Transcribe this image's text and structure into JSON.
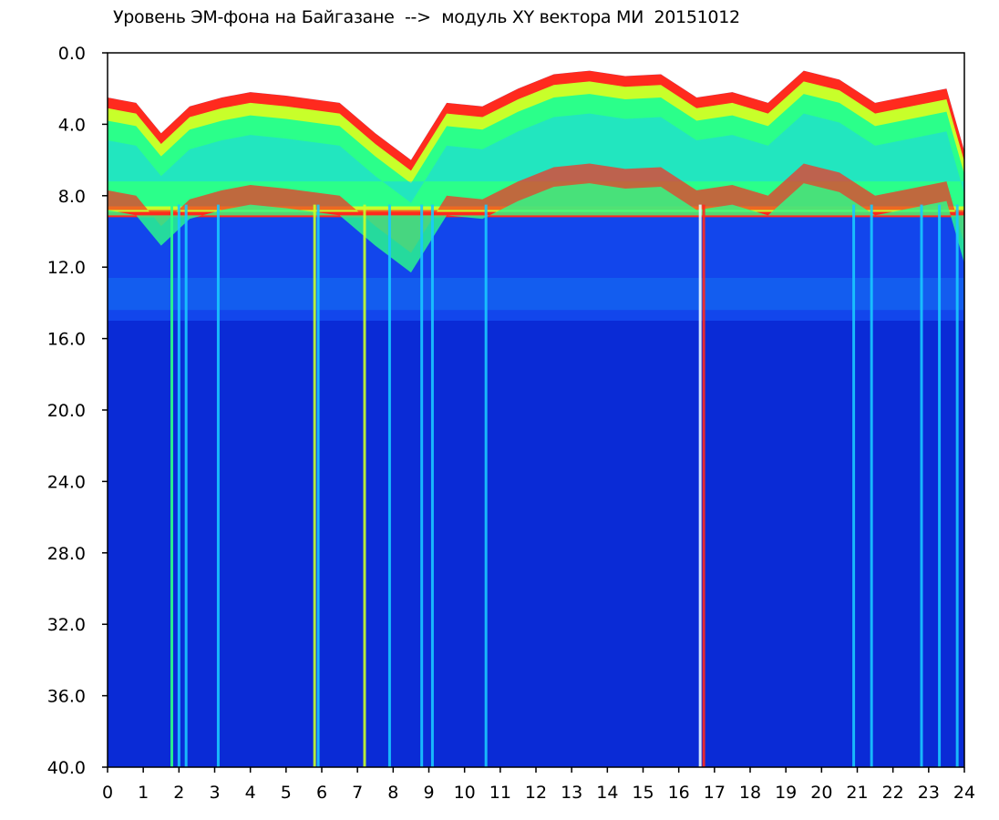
{
  "chart_data": {
    "type": "heatmap",
    "title": "Уровень ЭМ-фона на Байгазане  -->  модуль XY вектора МИ  20151012",
    "xlabel": "",
    "ylabel": "",
    "x_range": [
      0,
      24
    ],
    "y_range": [
      0,
      40
    ],
    "y_inverted": true,
    "x_ticks": [
      "0",
      "1",
      "2",
      "3",
      "4",
      "5",
      "6",
      "7",
      "8",
      "9",
      "10",
      "11",
      "12",
      "13",
      "14",
      "15",
      "16",
      "17",
      "18",
      "19",
      "20",
      "21",
      "22",
      "23",
      "24"
    ],
    "y_ticks": [
      "0.0",
      "4.0",
      "8.0",
      "12.0",
      "16.0",
      "20.0",
      "24.0",
      "28.0",
      "32.0",
      "36.0",
      "40.0"
    ],
    "grid": false,
    "colormap": [
      "#0a2bd6",
      "#1a5cff",
      "#19c8ff",
      "#2bff8a",
      "#c8ff2a",
      "#ff2a1e"
    ],
    "background_color": "#ffffff",
    "upper_band_edge": {
      "x": [
        0,
        0.8,
        1.5,
        2.3,
        3.2,
        4.0,
        5.0,
        6.5,
        7.5,
        8.5,
        9.5,
        10.5,
        11.5,
        12.5,
        13.5,
        14.5,
        15.5,
        16.5,
        17.5,
        18.5,
        19.5,
        20.5,
        21.5,
        22.5,
        23.5,
        24
      ],
      "y": [
        2.5,
        2.8,
        4.5,
        3.0,
        2.5,
        2.2,
        2.4,
        2.8,
        4.5,
        6.0,
        2.8,
        3.0,
        2.0,
        1.2,
        1.0,
        1.3,
        1.2,
        2.5,
        2.2,
        2.8,
        1.0,
        1.5,
        2.8,
        2.4,
        2.0,
        5.5
      ]
    },
    "noise_band_bottom": 15.0,
    "vertical_streaks": [
      {
        "x": 1.8,
        "color": "green"
      },
      {
        "x": 2.0,
        "color": "cyan"
      },
      {
        "x": 2.2,
        "color": "cyan"
      },
      {
        "x": 3.1,
        "color": "cyan"
      },
      {
        "x": 5.8,
        "color": "yellow"
      },
      {
        "x": 5.9,
        "color": "cyan"
      },
      {
        "x": 7.2,
        "color": "yellow"
      },
      {
        "x": 7.9,
        "color": "cyan"
      },
      {
        "x": 8.8,
        "color": "cyan"
      },
      {
        "x": 9.1,
        "color": "cyan"
      },
      {
        "x": 10.6,
        "color": "cyan"
      },
      {
        "x": 16.6,
        "color": "white"
      },
      {
        "x": 16.7,
        "color": "red"
      },
      {
        "x": 20.9,
        "color": "cyan"
      },
      {
        "x": 21.4,
        "color": "cyan"
      },
      {
        "x": 22.8,
        "color": "cyan"
      },
      {
        "x": 23.3,
        "color": "cyan"
      },
      {
        "x": 23.8,
        "color": "cyan"
      }
    ]
  }
}
